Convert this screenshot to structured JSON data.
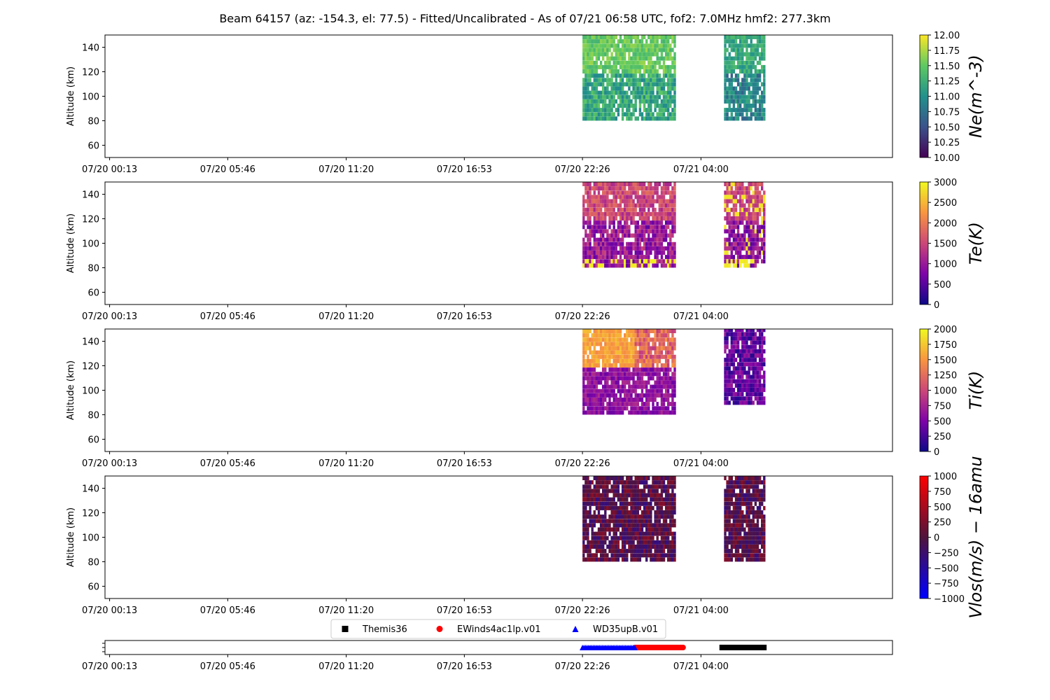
{
  "title": "Beam 64157 (az: -154.3, el: 77.5) - Fitted/Uncalibrated - As of 07/21 06:58 UTC, fof2: 7.0MHz  hmf2: 277.3km",
  "chart_data": [
    {
      "type": "heatmap",
      "id": "ne",
      "ylabel": "Altitude (km)",
      "yticks": [
        60,
        80,
        100,
        120,
        140
      ],
      "ylim": [
        50,
        150
      ],
      "xtick_labels": [
        "07/20 00:13",
        "07/20 05:46",
        "07/20 11:20",
        "07/20 16:53",
        "07/20 22:26",
        "07/21 04:00"
      ],
      "colorbar_label": "Ne(m^-3)",
      "colorbar_ticks": [
        "10.00",
        "10.25",
        "10.50",
        "10.75",
        "11.00",
        "11.25",
        "11.50",
        "11.75",
        "12.00"
      ],
      "clim": [
        10,
        12
      ],
      "colormap": "viridis",
      "data_blocks": [
        {
          "time_start": "07/20 22:26",
          "time_end": "07/21 02:45",
          "alt_min": 80,
          "alt_max": 150,
          "typical_value": 11.2
        },
        {
          "time_start": "07/21 05:05",
          "time_end": "07/21 07:00",
          "alt_min": 80,
          "alt_max": 150,
          "typical_value": 10.9
        }
      ]
    },
    {
      "type": "heatmap",
      "id": "te",
      "ylabel": "Altitude (km)",
      "yticks": [
        60,
        80,
        100,
        120,
        140
      ],
      "ylim": [
        50,
        150
      ],
      "xtick_labels": [
        "07/20 00:13",
        "07/20 05:46",
        "07/20 11:20",
        "07/20 16:53",
        "07/20 22:26",
        "07/21 04:00"
      ],
      "colorbar_label": "Te(K)",
      "colorbar_ticks": [
        "0",
        "500",
        "1000",
        "1500",
        "2000",
        "2500",
        "3000"
      ],
      "clim": [
        0,
        3000
      ],
      "colormap": "plasma",
      "data_blocks": [
        {
          "time_start": "07/20 22:26",
          "time_end": "07/21 02:45",
          "alt_min": 80,
          "alt_max": 150,
          "typical_value": 1000
        },
        {
          "time_start": "07/21 05:05",
          "time_end": "07/21 07:00",
          "alt_min": 80,
          "alt_max": 150,
          "typical_value": 900
        }
      ]
    },
    {
      "type": "heatmap",
      "id": "ti",
      "ylabel": "Altitude (km)",
      "yticks": [
        60,
        80,
        100,
        120,
        140
      ],
      "ylim": [
        50,
        150
      ],
      "xtick_labels": [
        "07/20 00:13",
        "07/20 05:46",
        "07/20 11:20",
        "07/20 16:53",
        "07/20 22:26",
        "07/21 04:00"
      ],
      "colorbar_label": "Ti(K)",
      "colorbar_ticks": [
        "0",
        "250",
        "500",
        "750",
        "1000",
        "1250",
        "1500",
        "1750",
        "2000"
      ],
      "clim": [
        0,
        2000
      ],
      "colormap": "plasma",
      "data_blocks": [
        {
          "time_start": "07/20 22:26",
          "time_end": "07/21 02:45",
          "alt_min": 80,
          "alt_max": 150,
          "typical_value": 1200
        },
        {
          "time_start": "07/21 05:05",
          "time_end": "07/21 07:00",
          "alt_min": 88,
          "alt_max": 150,
          "typical_value": 400
        }
      ]
    },
    {
      "type": "heatmap",
      "id": "vlos",
      "ylabel": "Altitude (km)",
      "yticks": [
        60,
        80,
        100,
        120,
        140
      ],
      "ylim": [
        50,
        150
      ],
      "xtick_labels": [
        "07/20 00:13",
        "07/20 05:46",
        "07/20 11:20",
        "07/20 16:53",
        "07/20 22:26",
        "07/21 04:00"
      ],
      "colorbar_label": "Vlos(m/s) − 16amu",
      "colorbar_ticks": [
        "−1000",
        "−750",
        "−500",
        "−250",
        "0",
        "250",
        "500",
        "750",
        "1000"
      ],
      "clim": [
        -1000,
        1000
      ],
      "colormap": "blue-red",
      "data_blocks": [
        {
          "time_start": "07/20 22:26",
          "time_end": "07/21 02:45",
          "alt_min": 80,
          "alt_max": 150,
          "typical_value": 0
        },
        {
          "time_start": "07/21 05:05",
          "time_end": "07/21 07:00",
          "alt_min": 80,
          "alt_max": 150,
          "typical_value": 0
        }
      ]
    },
    {
      "type": "scatter",
      "id": "modes",
      "xtick_labels": [
        "07/20 00:13",
        "07/20 05:46",
        "07/20 11:20",
        "07/20 16:53",
        "07/20 22:26",
        "07/21 04:00"
      ],
      "legend_placement": "top-center",
      "series": [
        {
          "name": "Themis36",
          "marker": "square",
          "color": "#000000",
          "time_start": "07/21 05:00",
          "time_end": "07/21 07:00"
        },
        {
          "name": "EWinds4ac1lp.v01",
          "marker": "circle",
          "color": "#ff0000",
          "time_start": "07/21 00:55",
          "time_end": "07/21 03:10"
        },
        {
          "name": "WD35upB.v01",
          "marker": "triangle",
          "color": "#0000ff",
          "time_start": "07/20 22:26",
          "time_end": "07/21 00:55"
        }
      ]
    }
  ]
}
